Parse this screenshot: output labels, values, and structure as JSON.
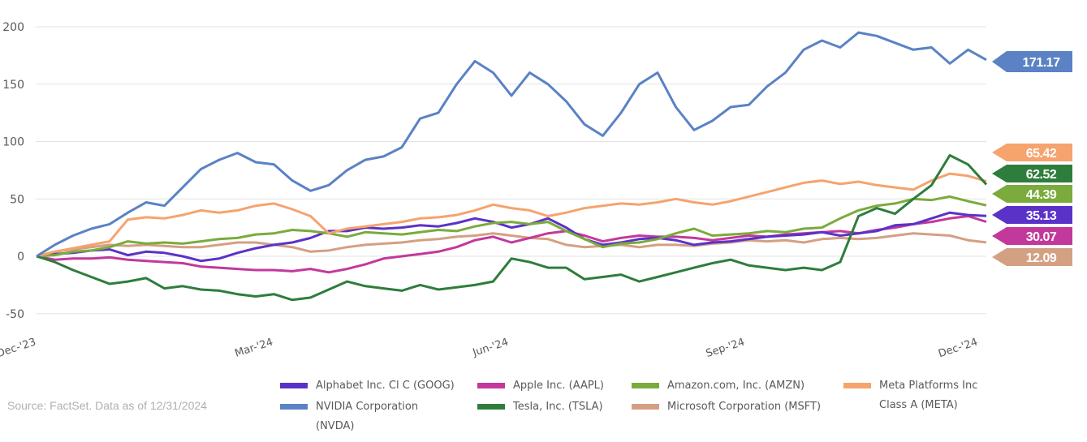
{
  "source_note": "Source: FactSet. Data as of 12/31/2024",
  "chart_data": {
    "type": "line",
    "title": "",
    "xlabel": "",
    "ylabel": "",
    "ylim": [
      -50,
      200
    ],
    "yticks": [
      -50,
      0,
      50,
      100,
      150,
      200
    ],
    "ytick_labels": [
      "-50",
      "0",
      "50",
      "100",
      "150",
      "200"
    ],
    "xtick_labels": [
      "Dec-'23",
      "Mar-'24",
      "Jun-'24",
      "Sep-'24",
      "Dec-'24"
    ],
    "grid": true,
    "legend_position": "bottom",
    "x": [
      "2023-12-29",
      "2024-01-05",
      "2024-01-12",
      "2024-01-19",
      "2024-01-26",
      "2024-02-02",
      "2024-02-09",
      "2024-02-16",
      "2024-02-23",
      "2024-03-01",
      "2024-03-08",
      "2024-03-15",
      "2024-03-22",
      "2024-03-29",
      "2024-04-05",
      "2024-04-12",
      "2024-04-19",
      "2024-04-26",
      "2024-05-03",
      "2024-05-10",
      "2024-05-17",
      "2024-05-24",
      "2024-05-31",
      "2024-06-07",
      "2024-06-14",
      "2024-06-21",
      "2024-06-28",
      "2024-07-05",
      "2024-07-12",
      "2024-07-19",
      "2024-07-26",
      "2024-08-02",
      "2024-08-09",
      "2024-08-16",
      "2024-08-23",
      "2024-08-30",
      "2024-09-06",
      "2024-09-13",
      "2024-09-20",
      "2024-09-27",
      "2024-10-04",
      "2024-10-11",
      "2024-10-18",
      "2024-10-25",
      "2024-11-01",
      "2024-11-08",
      "2024-11-15",
      "2024-11-22",
      "2024-11-29",
      "2024-12-06",
      "2024-12-13",
      "2024-12-20",
      "2024-12-31"
    ],
    "series": [
      {
        "name": "Alphabet Inc. Cl C (GOOG)",
        "color": "#5b32c8",
        "end_label": "35.13",
        "values": [
          0,
          2,
          3,
          5,
          6,
          1,
          4,
          3,
          0,
          -4,
          -2,
          3,
          7,
          10,
          12,
          16,
          22,
          22,
          25,
          24,
          25,
          27,
          26,
          29,
          33,
          30,
          25,
          28,
          33,
          25,
          15,
          10,
          12,
          15,
          16,
          14,
          10,
          12,
          13,
          15,
          17,
          18,
          19,
          21,
          18,
          20,
          22,
          27,
          28,
          33,
          38,
          36,
          35.13
        ]
      },
      {
        "name": "Apple Inc. (AAPL)",
        "color": "#c2399b",
        "end_label": "30.07",
        "values": [
          0,
          -3,
          -2,
          -2,
          -1,
          -3,
          -4,
          -5,
          -6,
          -9,
          -10,
          -11,
          -12,
          -12,
          -13,
          -11,
          -14,
          -11,
          -7,
          -2,
          0,
          2,
          4,
          8,
          14,
          17,
          12,
          16,
          20,
          22,
          18,
          13,
          16,
          18,
          17,
          17,
          16,
          14,
          16,
          18,
          17,
          19,
          20,
          21,
          22,
          20,
          23,
          25,
          28,
          30,
          33,
          35,
          30.07
        ]
      },
      {
        "name": "Amazon.com, Inc. (AMZN)",
        "color": "#7aab3c",
        "end_label": "44.39",
        "values": [
          0,
          1,
          4,
          5,
          8,
          13,
          11,
          12,
          11,
          13,
          15,
          16,
          19,
          20,
          23,
          22,
          20,
          17,
          21,
          20,
          19,
          21,
          23,
          22,
          26,
          29,
          30,
          28,
          30,
          22,
          15,
          8,
          11,
          12,
          15,
          20,
          24,
          18,
          19,
          20,
          22,
          21,
          24,
          25,
          33,
          40,
          44,
          46,
          50,
          49,
          52,
          48,
          44.39
        ]
      },
      {
        "name": "NVIDIA Corporation (NVDA)",
        "color": "#5a82c4",
        "end_label": "171.17",
        "values": [
          0,
          10,
          18,
          24,
          28,
          38,
          47,
          44,
          60,
          76,
          84,
          90,
          82,
          80,
          66,
          57,
          62,
          75,
          84,
          87,
          95,
          120,
          125,
          150,
          170,
          160,
          140,
          160,
          150,
          135,
          115,
          105,
          125,
          150,
          160,
          130,
          110,
          118,
          130,
          132,
          148,
          160,
          180,
          188,
          182,
          195,
          192,
          186,
          180,
          182,
          168,
          180,
          171.17
        ]
      },
      {
        "name": "Tesla, Inc. (TSLA)",
        "color": "#2e7d3c",
        "end_label": "62.52",
        "values": [
          0,
          -5,
          -12,
          -18,
          -24,
          -22,
          -19,
          -28,
          -26,
          -29,
          -30,
          -33,
          -35,
          -33,
          -38,
          -36,
          -29,
          -22,
          -26,
          -28,
          -30,
          -25,
          -29,
          -27,
          -25,
          -22,
          -2,
          -5,
          -10,
          -10,
          -20,
          -18,
          -16,
          -22,
          -18,
          -14,
          -10,
          -6,
          -3,
          -8,
          -10,
          -12,
          -10,
          -12,
          -5,
          35,
          42,
          37,
          50,
          62,
          88,
          80,
          62.52
        ]
      },
      {
        "name": "Microsoft Corporation (MSFT)",
        "color": "#d4a083",
        "end_label": "12.09",
        "values": [
          0,
          4,
          6,
          8,
          10,
          9,
          10,
          9,
          8,
          8,
          10,
          12,
          12,
          10,
          8,
          4,
          5,
          8,
          10,
          11,
          12,
          14,
          15,
          17,
          18,
          20,
          18,
          16,
          15,
          10,
          8,
          9,
          10,
          8,
          10,
          10,
          9,
          11,
          12,
          14,
          13,
          14,
          12,
          15,
          16,
          15,
          16,
          18,
          20,
          19,
          18,
          14,
          12.09
        ]
      },
      {
        "name": "Meta Platforms Inc Class A (META)",
        "color": "#f6a36e",
        "end_label": "65.42",
        "values": [
          0,
          4,
          7,
          10,
          13,
          32,
          34,
          33,
          36,
          40,
          38,
          40,
          44,
          46,
          41,
          35,
          20,
          24,
          26,
          28,
          30,
          33,
          34,
          36,
          40,
          45,
          42,
          40,
          35,
          38,
          42,
          44,
          46,
          45,
          47,
          50,
          47,
          45,
          48,
          52,
          56,
          60,
          64,
          66,
          63,
          65,
          62,
          60,
          58,
          66,
          72,
          70,
          65.42
        ]
      }
    ]
  }
}
